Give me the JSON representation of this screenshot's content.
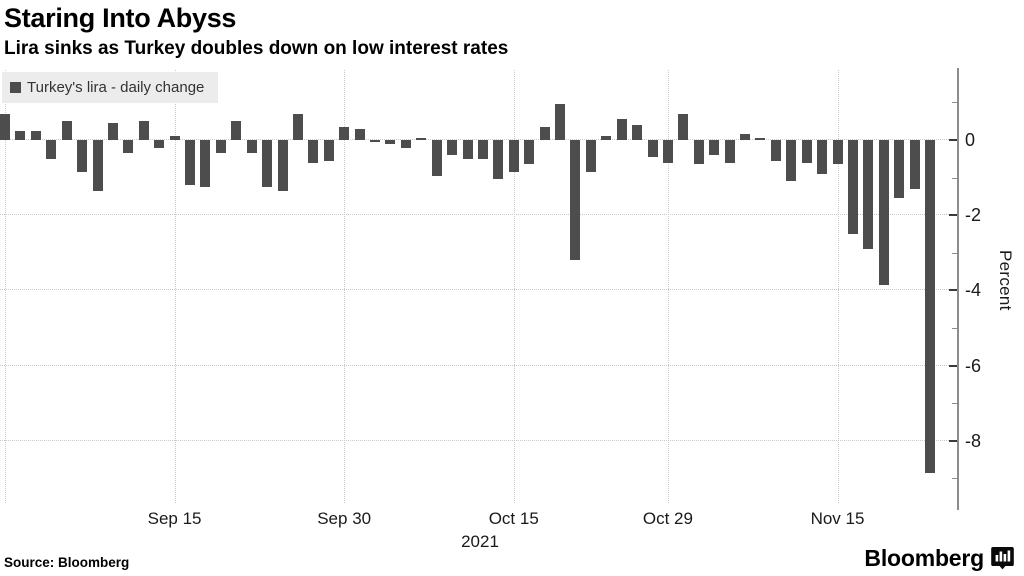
{
  "header": {
    "title": "Staring Into Abyss",
    "subtitle": "Lira sinks as Turkey doubles down on low interest rates"
  },
  "legend": {
    "label": "Turkey's lira - daily change",
    "swatch_color": "#4d4d4d"
  },
  "footer": {
    "source": "Source: Bloomberg",
    "brand": "Bloomberg"
  },
  "chart_data": {
    "type": "bar",
    "title": "Staring Into Abyss",
    "subtitle": "Lira sinks as Turkey doubles down on low interest rates",
    "series_name": "Turkey's lira - daily change",
    "xlabel": "",
    "ylabel": "Percent",
    "x_year_label": "2021",
    "bar_color": "#4d4d4d",
    "grid": true,
    "legend_position": "top-left",
    "axis_side": "right",
    "ylim": [
      -9.6,
      1.9
    ],
    "yticks": [
      {
        "value": 0,
        "label": "0"
      },
      {
        "value": -2,
        "label": "-2"
      },
      {
        "value": -4,
        "label": "-4"
      },
      {
        "value": -6,
        "label": "-6"
      },
      {
        "value": -8,
        "label": "-8"
      }
    ],
    "yticks_minor": [
      1,
      -1,
      -3,
      -5,
      -7,
      -9
    ],
    "xticks": [
      {
        "index": 0,
        "label": ""
      },
      {
        "index": 11,
        "label": "Sep 15"
      },
      {
        "index": 22,
        "label": "Sep 30"
      },
      {
        "index": 33,
        "label": "Oct 15"
      },
      {
        "index": 43,
        "label": "Oct 29"
      },
      {
        "index": 54,
        "label": "Nov 15"
      }
    ],
    "x": [
      "Aug 31",
      "Sep 1",
      "Sep 2",
      "Sep 3",
      "Sep 6",
      "Sep 7",
      "Sep 8",
      "Sep 9",
      "Sep 10",
      "Sep 13",
      "Sep 14",
      "Sep 15",
      "Sep 16",
      "Sep 17",
      "Sep 20",
      "Sep 21",
      "Sep 22",
      "Sep 23",
      "Sep 24",
      "Sep 27",
      "Sep 28",
      "Sep 29",
      "Sep 30",
      "Oct 1",
      "Oct 4",
      "Oct 5",
      "Oct 6",
      "Oct 7",
      "Oct 8",
      "Oct 11",
      "Oct 12",
      "Oct 13",
      "Oct 14",
      "Oct 15",
      "Oct 18",
      "Oct 19",
      "Oct 20",
      "Oct 21",
      "Oct 22",
      "Oct 25",
      "Oct 26",
      "Oct 27",
      "Oct 28",
      "Oct 29",
      "Nov 1",
      "Nov 2",
      "Nov 3",
      "Nov 4",
      "Nov 5",
      "Nov 8",
      "Nov 9",
      "Nov 10",
      "Nov 11",
      "Nov 12",
      "Nov 15",
      "Nov 16",
      "Nov 17",
      "Nov 18",
      "Nov 19",
      "Nov 22",
      "Nov 23"
    ],
    "values": [
      0.7,
      0.25,
      0.25,
      -0.5,
      0.5,
      -0.85,
      -1.35,
      0.45,
      -0.35,
      0.5,
      -0.2,
      0.1,
      -1.2,
      -1.25,
      -0.35,
      0.5,
      -0.35,
      -1.25,
      -1.35,
      0.7,
      -0.6,
      -0.55,
      0.35,
      0.3,
      -0.05,
      -0.1,
      -0.2,
      0.05,
      -0.95,
      -0.4,
      -0.5,
      -0.5,
      -1.05,
      -0.85,
      -0.65,
      0.35,
      0.95,
      -3.2,
      -0.85,
      0.1,
      0.55,
      0.4,
      -0.45,
      -0.6,
      0.7,
      -0.65,
      -0.4,
      -0.6,
      0.15,
      0.05,
      -0.55,
      -1.1,
      -0.6,
      -0.9,
      -0.65,
      -2.5,
      -2.9,
      -3.85,
      -1.55,
      -1.3,
      -8.85
    ]
  }
}
